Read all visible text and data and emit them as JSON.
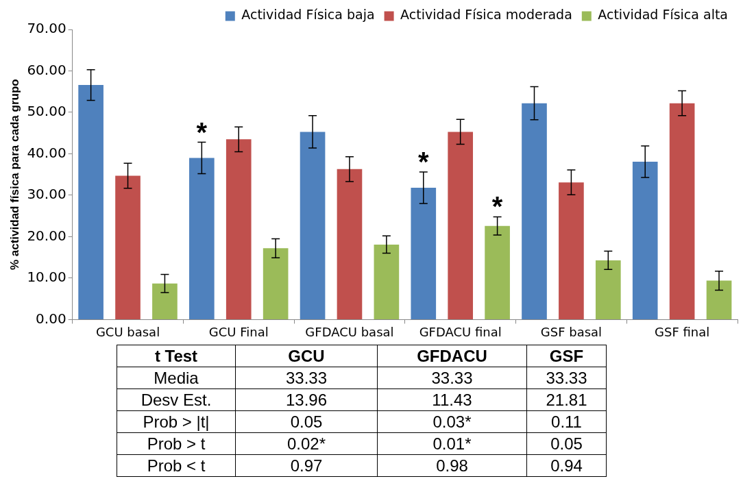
{
  "chart_data": {
    "type": "bar",
    "ylabel": "% actividad física para cada grupo",
    "categories": [
      "GCU basal",
      "GCU Final",
      "GFDACU basal",
      "GFDACU final",
      "GSF basal",
      "GSF final"
    ],
    "series": [
      {
        "name": "Actividad Física baja",
        "color": "#4f81bd",
        "values": [
          56.6,
          39.0,
          45.3,
          31.8,
          52.2,
          38.1
        ],
        "errors": [
          3.7,
          3.8,
          3.9,
          3.8,
          4.0,
          3.8
        ]
      },
      {
        "name": "Actividad Física moderada",
        "color": "#c0504d",
        "values": [
          34.7,
          43.5,
          36.3,
          45.3,
          33.1,
          52.2
        ],
        "errors": [
          3.0,
          3.0,
          3.0,
          3.0,
          3.0,
          3.0
        ]
      },
      {
        "name": "Actividad Física alta",
        "color": "#9bbb59",
        "values": [
          8.7,
          17.2,
          18.1,
          22.6,
          14.3,
          9.4
        ],
        "errors": [
          2.2,
          2.3,
          2.1,
          2.2,
          2.2,
          2.3
        ]
      }
    ],
    "ylim": [
      0,
      70
    ],
    "yticks": [
      {
        "value": 0,
        "label": "0.00"
      },
      {
        "value": 10,
        "label": "10.00"
      },
      {
        "value": 20,
        "label": "20.00"
      },
      {
        "value": 30,
        "label": "30.00"
      },
      {
        "value": 40,
        "label": "40.00"
      },
      {
        "value": 50,
        "label": "50.00"
      },
      {
        "value": 60,
        "label": "60.00"
      },
      {
        "value": 70,
        "label": "70.00"
      }
    ],
    "grid": false,
    "legend": "top",
    "annotations": [
      "*",
      "*",
      "*",
      "t Test",
      "GCU",
      "GFDACU",
      "GSF",
      "Media",
      "33.33",
      "33.33",
      "33.33",
      "Desv Est.",
      "13.96",
      "11.43",
      "21.81",
      "Prob > |t|",
      "0.05",
      "0.03*",
      "0.11",
      "Prob > t",
      "0.02*",
      "0.01*",
      "0.05",
      "Prob < t",
      "0.97",
      "0.98",
      "0.94"
    ]
  }
}
